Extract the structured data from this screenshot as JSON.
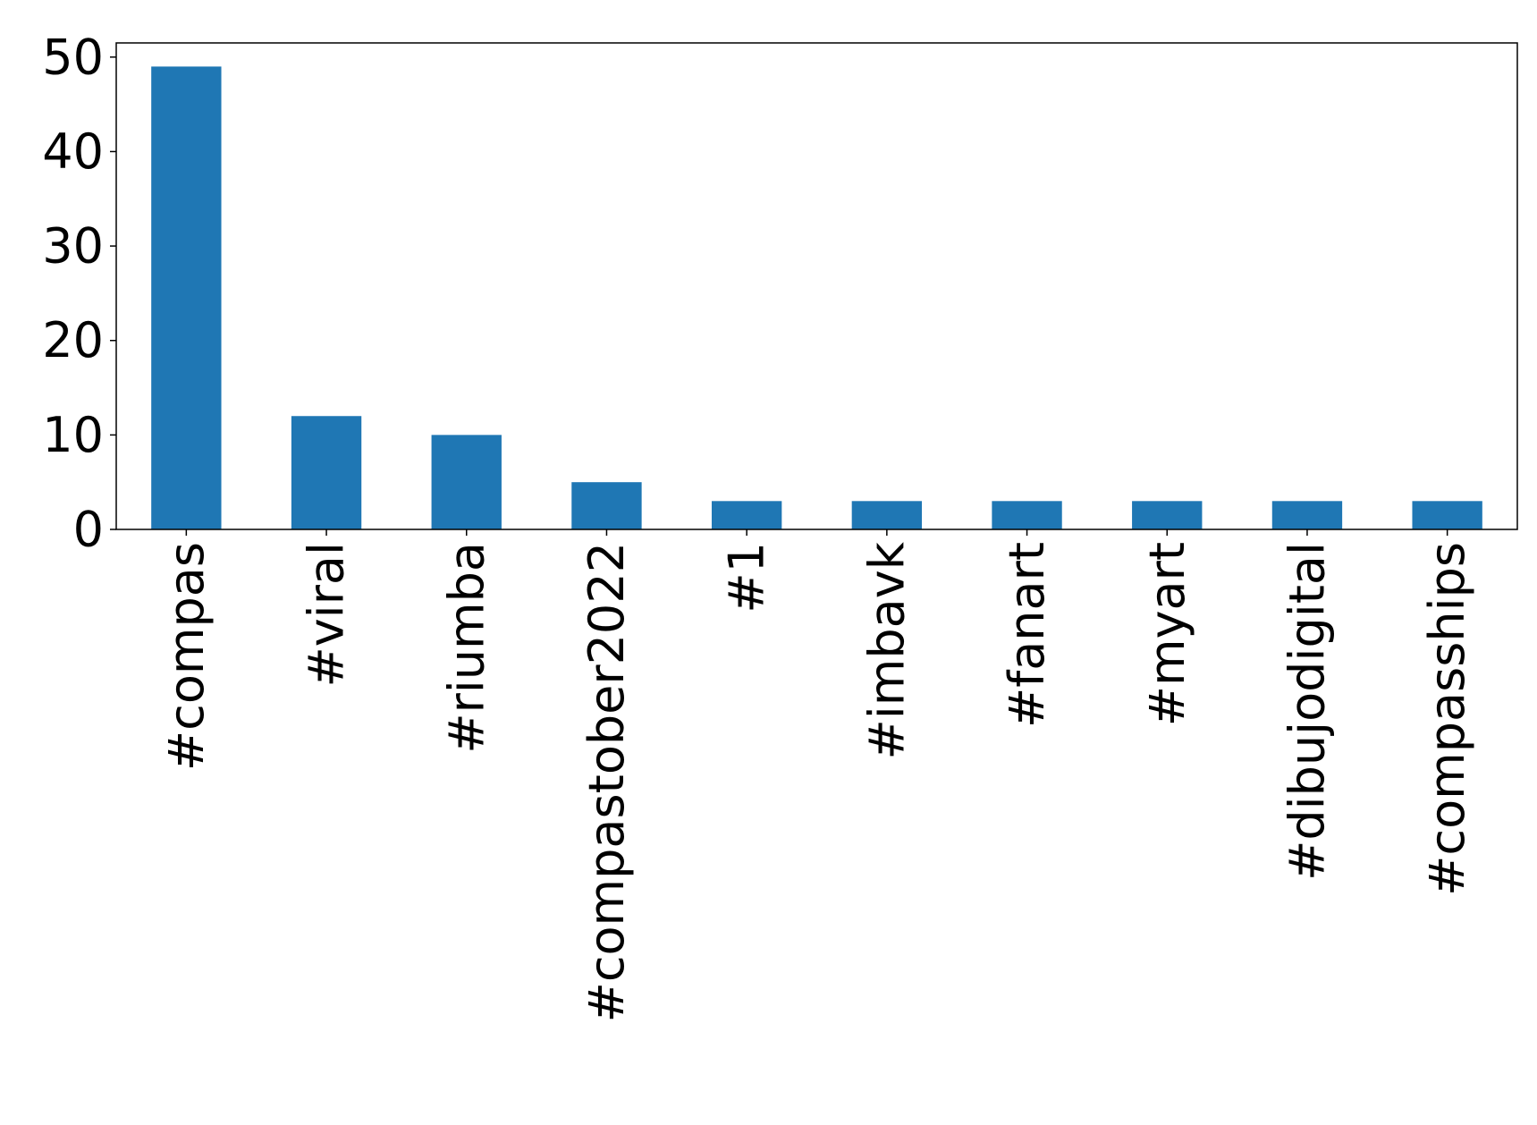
{
  "chart_data": {
    "type": "bar",
    "title": "",
    "xlabel": "",
    "ylabel": "",
    "categories": [
      "#compas",
      "#viral",
      "#riumba",
      "#compastober2022",
      "#1",
      "#imbavk",
      "#fanart",
      "#myart",
      "#dibujodigital",
      "#compasships"
    ],
    "values": [
      49,
      12,
      10,
      5,
      3,
      3,
      3,
      3,
      3,
      3
    ],
    "ylim": [
      0,
      51.5
    ],
    "yticks": [
      0,
      10,
      20,
      30,
      40,
      50
    ],
    "ytick_labels": [
      "0",
      "10",
      "20",
      "30",
      "40",
      "50"
    ],
    "grid": false,
    "legend": "none",
    "bar_color": "#1f77b4"
  }
}
